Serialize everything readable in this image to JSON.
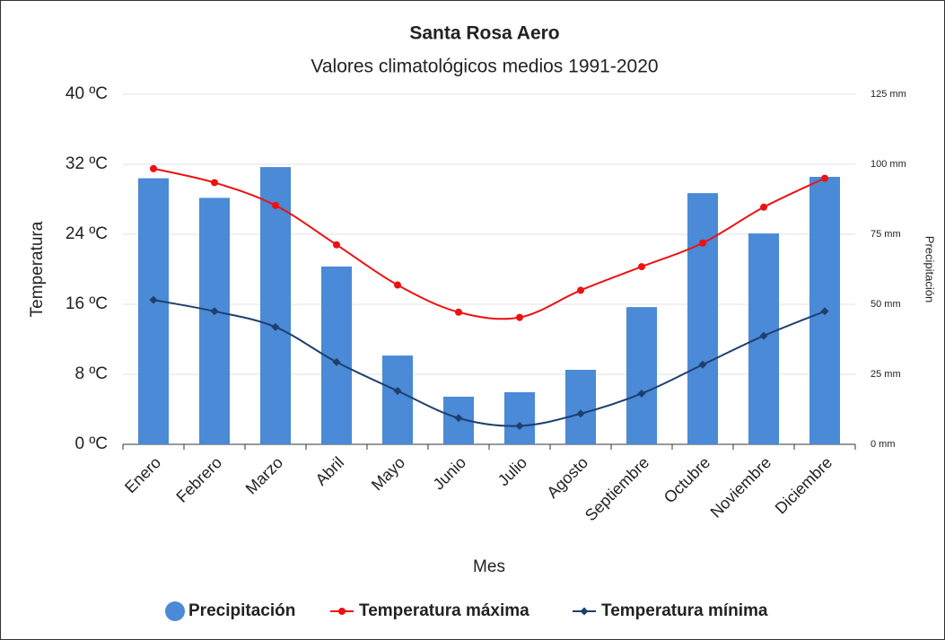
{
  "chart_data": {
    "type": "bar",
    "title": "Santa Rosa Aero",
    "subtitle": "Valores climatológicos medios 1991-2020",
    "x_label": "Mes",
    "y_label": "Temperatura",
    "y2_label": "Precipitación",
    "categories": [
      "Enero",
      "Febrero",
      "Marzo",
      "Abril",
      "Mayo",
      "Junio",
      "Julio",
      "Agosto",
      "Septiembre",
      "Octubre",
      "Noviembre",
      "Diciembre"
    ],
    "series": [
      {
        "name": "Precipitación",
        "type": "bar",
        "axis": "y2",
        "color": "#4a8ad6",
        "values": [
          95,
          88,
          99,
          63.5,
          31.7,
          17,
          18.6,
          26.6,
          49,
          89.7,
          75.3,
          95.5
        ]
      },
      {
        "name": "Temperatura máxima",
        "type": "line",
        "axis": "y",
        "color": "#ee1111",
        "values": [
          31.5,
          29.9,
          27.3,
          22.8,
          18.2,
          15.1,
          14.5,
          17.6,
          20.3,
          23.0,
          27.1,
          30.4
        ]
      },
      {
        "name": "Temperatura mínima",
        "type": "line",
        "axis": "y",
        "color": "#1f3f6e",
        "values": [
          16.5,
          15.2,
          13.4,
          9.4,
          6.1,
          3.0,
          2.1,
          3.5,
          5.8,
          9.1,
          12.4,
          15.2
        ]
      }
    ],
    "ylim": [
      0,
      40
    ],
    "yticks": [
      {
        "value": 0,
        "label": "0 ºC"
      },
      {
        "value": 8,
        "label": "8 ºC"
      },
      {
        "value": 16,
        "label": "16 ºC"
      },
      {
        "value": 24,
        "label": "24 ºC"
      },
      {
        "value": 32,
        "label": "32 ºC"
      },
      {
        "value": 40,
        "label": "40 ºC"
      }
    ],
    "y2lim": [
      0,
      125
    ],
    "y2ticks": [
      {
        "value": 0,
        "label": "0 mm"
      },
      {
        "value": 25,
        "label": "25 mm"
      },
      {
        "value": 50,
        "label": "50 mm"
      },
      {
        "value": 75,
        "label": "75 mm"
      },
      {
        "value": 100,
        "label": "100 mm"
      },
      {
        "value": 125,
        "label": "125 mm"
      }
    ],
    "grid": true,
    "legend": "bottom"
  }
}
